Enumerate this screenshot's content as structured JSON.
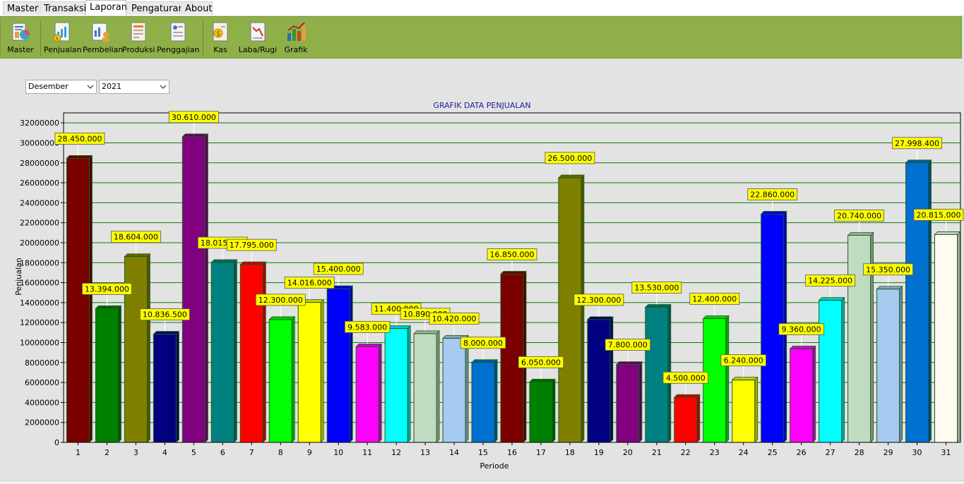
{
  "menu": {
    "tabs": [
      {
        "label": "Master"
      },
      {
        "label": "Transaksi"
      },
      {
        "label": "Laporan"
      },
      {
        "label": "Pengaturan"
      },
      {
        "label": "About"
      }
    ]
  },
  "toolbar": {
    "buttons": [
      {
        "label": "Master",
        "icon": "master-report-icon"
      },
      {
        "label": "Penjualan",
        "icon": "sales-report-icon"
      },
      {
        "label": "Pembelian",
        "icon": "purchase-report-icon"
      },
      {
        "label": "Produksi",
        "icon": "production-report-icon"
      },
      {
        "label": "Penggajian",
        "icon": "payroll-report-icon"
      },
      {
        "label": "Kas",
        "icon": "cash-report-icon"
      },
      {
        "label": "Laba/Rugi",
        "icon": "profit-loss-icon"
      },
      {
        "label": "Grafik",
        "icon": "chart-icon"
      }
    ]
  },
  "filters": {
    "month": "Desember",
    "year": "2021"
  },
  "colors": {
    "ribbon": "#8fb048",
    "grid": "#0e7a0e",
    "label_bg": "#ffff00",
    "title": "#1d1d9e"
  },
  "chart_data": {
    "type": "bar",
    "title": "GRAFIK DATA PENJUALAN",
    "xlabel": "Periode",
    "ylabel": "Penjualan",
    "ylim": [
      0,
      33000000
    ],
    "yticks": [
      0,
      2000000,
      4000000,
      6000000,
      8000000,
      10000000,
      12000000,
      14000000,
      16000000,
      18000000,
      20000000,
      22000000,
      24000000,
      26000000,
      28000000,
      30000000,
      32000000
    ],
    "grid": true,
    "categories": [
      "1",
      "2",
      "3",
      "4",
      "5",
      "6",
      "7",
      "8",
      "9",
      "10",
      "11",
      "12",
      "13",
      "14",
      "15",
      "16",
      "17",
      "18",
      "19",
      "20",
      "21",
      "22",
      "23",
      "24",
      "25",
      "26",
      "27",
      "28",
      "29",
      "30",
      "31"
    ],
    "values": [
      28450000,
      13394000,
      18604000,
      10836500,
      30610000,
      18015000,
      17795000,
      12300000,
      14016000,
      15400000,
      9583000,
      11400000,
      10890000,
      10420000,
      8000000,
      16850000,
      6050000,
      26500000,
      12300000,
      7800000,
      13530000,
      4500000,
      12400000,
      6240000,
      22860000,
      9360000,
      14225000,
      20740000,
      15350000,
      27998400,
      20815000
    ],
    "value_labels": [
      "28.450.000",
      "13.394.000",
      "18.604.000",
      "10.836.500",
      "30.610.000",
      "18.015.000",
      "17.795.000",
      "12.300.000",
      "14.016.000",
      "15.400.000",
      "9.583.000",
      "11.400.000",
      "10.890.000",
      "10.420.000",
      "8.000.000",
      "16.850.000",
      "6.050.000",
      "26.500.000",
      "12.300.000",
      "7.800.000",
      "13.530.000",
      "4.500.000",
      "12.400.000",
      "6.240.000",
      "22.860.000",
      "9.360.000",
      "14.225.000",
      "20.740.000",
      "15.350.000",
      "27.998.400",
      "20.815.000"
    ],
    "bar_colors": [
      "#7a0000",
      "#008000",
      "#808000",
      "#000080",
      "#800080",
      "#008080",
      "#ff0000",
      "#00ff00",
      "#ffff00",
      "#0000ff",
      "#ff00ff",
      "#00ffff",
      "#c0dcc0",
      "#a6caf0",
      "#0070d0",
      "#7a0000",
      "#008000",
      "#808000",
      "#000080",
      "#800080",
      "#008080",
      "#ff0000",
      "#00ff00",
      "#ffff00",
      "#0000ff",
      "#ff00ff",
      "#00ffff",
      "#c0dcc0",
      "#a6caf0",
      "#0070d0",
      "#fffbf0"
    ]
  }
}
